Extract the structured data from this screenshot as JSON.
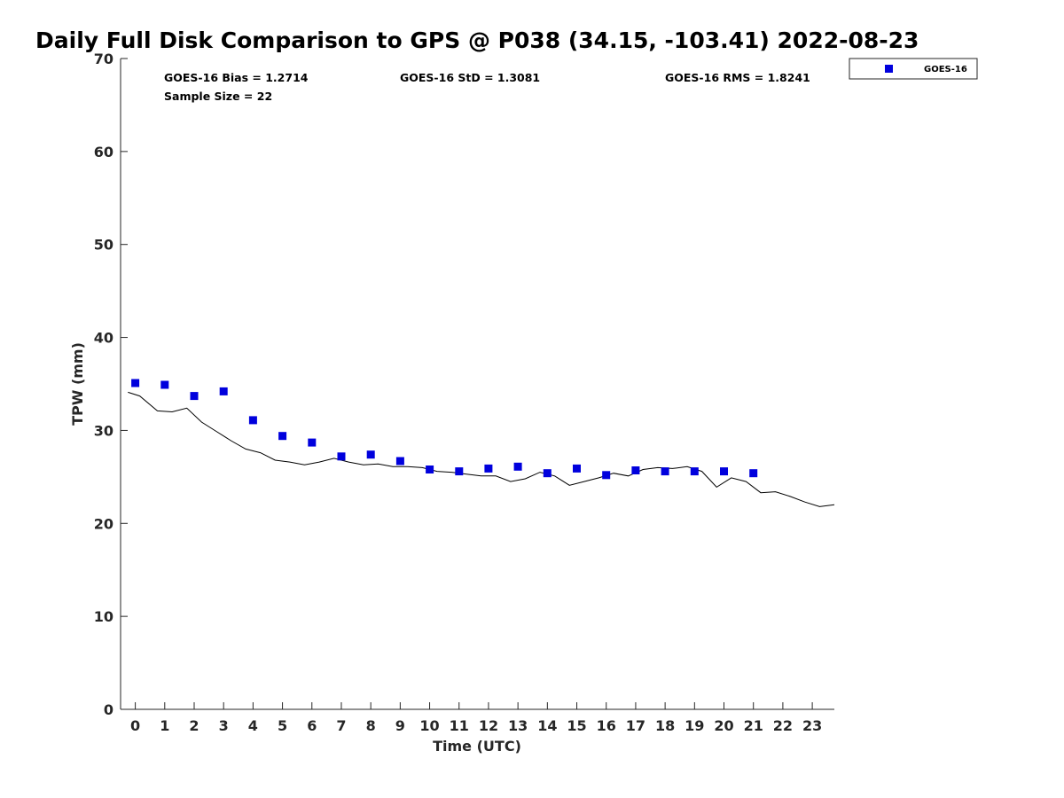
{
  "chart_data": {
    "type": "scatter",
    "title": "Daily Full Disk Comparison to GPS @ P038 (34.15, -103.41) 2022-08-23",
    "xlabel": "Time (UTC)",
    "ylabel": "TPW (mm)",
    "xlim": [
      -0.5,
      23.75
    ],
    "ylim": [
      0,
      70
    ],
    "xticks": [
      0,
      1,
      2,
      3,
      4,
      5,
      6,
      7,
      8,
      9,
      10,
      11,
      12,
      13,
      14,
      15,
      16,
      17,
      18,
      19,
      20,
      21,
      22,
      23
    ],
    "yticks": [
      0,
      10,
      20,
      30,
      40,
      50,
      60,
      70
    ],
    "stats": {
      "bias": "GOES-16 Bias = 1.2714",
      "std": "GOES-16 StD = 1.3081",
      "rms": "GOES-16 RMS = 1.8241",
      "sample": "Sample Size = 22"
    },
    "legend": {
      "position": "top-right-outside",
      "entries": [
        "GOES-16"
      ]
    },
    "series": [
      {
        "name": "GOES-16",
        "style": "square-markers",
        "color": "#0000dd",
        "x": [
          0,
          1,
          2,
          3,
          4,
          5,
          6,
          7,
          8,
          9,
          10,
          11,
          12,
          13,
          14,
          15,
          16,
          17,
          18,
          19,
          20,
          21
        ],
        "y": [
          35.1,
          34.9,
          33.7,
          34.2,
          31.1,
          29.4,
          28.7,
          27.2,
          27.4,
          26.7,
          25.8,
          25.6,
          25.9,
          26.1,
          25.4,
          25.9,
          25.2,
          25.7,
          25.6,
          25.6,
          25.6,
          25.4
        ]
      },
      {
        "name": "GPS",
        "style": "line",
        "color": "#000000",
        "x": [
          -0.25,
          0.15,
          0.75,
          1.25,
          1.75,
          2.25,
          2.75,
          3.25,
          3.75,
          4.25,
          4.75,
          5.25,
          5.75,
          6.25,
          6.75,
          7.25,
          7.75,
          8.25,
          8.75,
          9.25,
          9.75,
          10.25,
          10.75,
          11.25,
          11.75,
          12.25,
          12.75,
          13.25,
          13.75,
          14.25,
          14.75,
          15.25,
          15.75,
          16.25,
          16.75,
          17.25,
          17.75,
          18.25,
          18.75,
          19.25,
          19.75,
          20.25,
          20.75,
          21.25,
          21.75,
          22.25,
          22.75,
          23.25,
          23.75
        ],
        "y": [
          34.1,
          33.7,
          32.1,
          32.0,
          32.4,
          30.9,
          29.9,
          28.9,
          28.0,
          27.6,
          26.8,
          26.6,
          26.3,
          26.6,
          27.0,
          26.6,
          26.3,
          26.4,
          26.1,
          26.1,
          26.0,
          25.6,
          25.5,
          25.3,
          25.1,
          25.1,
          24.5,
          24.8,
          25.5,
          25.1,
          24.1,
          24.5,
          24.9,
          25.4,
          25.1,
          25.8,
          26.0,
          25.9,
          26.1,
          25.6,
          23.9,
          24.9,
          24.5,
          23.3,
          23.4,
          22.9,
          22.3,
          21.8,
          22.0
        ]
      }
    ]
  }
}
